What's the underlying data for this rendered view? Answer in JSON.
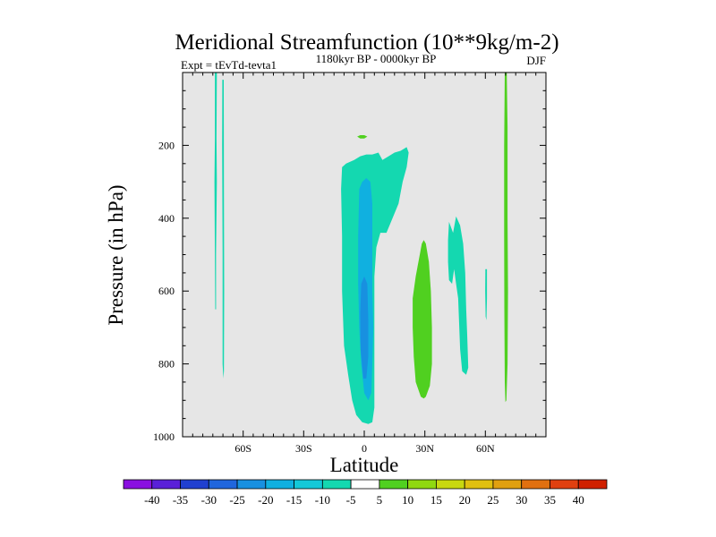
{
  "chart_data": {
    "type": "heatmap",
    "title": "Meridional Streamfunction (10**9kg/m-2)",
    "subtitle_left": "Expt = tEvTd-tevta1",
    "subtitle_center": "1180kyr BP - 0000kyr BP",
    "subtitle_right": "DJF",
    "xlabel": "Latitude",
    "ylabel": "Pressure (in hPa)",
    "xlim": [
      -90,
      90
    ],
    "ylim": [
      1000,
      0
    ],
    "x_ticks": [
      {
        "value": -60,
        "label": "60S"
      },
      {
        "value": -30,
        "label": "30S"
      },
      {
        "value": 0,
        "label": "0"
      },
      {
        "value": 30,
        "label": "30N"
      },
      {
        "value": 60,
        "label": "60N"
      }
    ],
    "y_ticks": [
      {
        "value": 200,
        "label": "200"
      },
      {
        "value": 400,
        "label": "400"
      },
      {
        "value": 600,
        "label": "600"
      },
      {
        "value": 800,
        "label": "800"
      },
      {
        "value": 1000,
        "label": "1000"
      }
    ],
    "plot_background": "#e6e6e6",
    "colorbar": {
      "labels": [
        "-40",
        "-35",
        "-30",
        "-25",
        "-20",
        "-15",
        "-10",
        "-5",
        "5",
        "10",
        "15",
        "20",
        "25",
        "30",
        "35",
        "40"
      ],
      "colors": [
        "#8a10e0",
        "#5a20d8",
        "#2040d0",
        "#2066dd",
        "#1890e0",
        "#10b0e0",
        "#14c8d8",
        "#14d8b0",
        "#ffffff",
        "#50d020",
        "#90d810",
        "#c8d810",
        "#e0c010",
        "#e0a010",
        "#e07010",
        "#e04010",
        "#d02000"
      ]
    },
    "regions": [
      {
        "name": "contour-sh-polar-band-a",
        "level": "-10",
        "color": "#14d8b0",
        "points": [
          [
            -74,
            0
          ],
          [
            -73,
            0
          ],
          [
            -73.2,
            180
          ],
          [
            -73,
            300
          ],
          [
            -73.4,
            500
          ],
          [
            -73.4,
            650
          ],
          [
            -73.8,
            650
          ],
          [
            -74,
            500
          ],
          [
            -74.2,
            300
          ],
          [
            -74,
            180
          ]
        ]
      },
      {
        "name": "contour-sh-polar-band-b",
        "level": "-10",
        "color": "#14d8b0",
        "points": [
          [
            -70.3,
            20
          ],
          [
            -69.6,
            20
          ],
          [
            -69.5,
            300
          ],
          [
            -69.4,
            600
          ],
          [
            -69.5,
            820
          ],
          [
            -69.8,
            840
          ],
          [
            -70.2,
            800
          ],
          [
            -70.2,
            500
          ],
          [
            -70.4,
            200
          ]
        ]
      },
      {
        "name": "contour-equatorial-cell-outer",
        "level": "-10",
        "color": "#14d8b0",
        "points": [
          [
            -11,
            260
          ],
          [
            -9,
            250
          ],
          [
            -5,
            240
          ],
          [
            -2,
            230
          ],
          [
            1,
            225
          ],
          [
            4,
            225
          ],
          [
            7,
            220
          ],
          [
            9,
            240
          ],
          [
            12,
            230
          ],
          [
            15,
            220
          ],
          [
            18,
            215
          ],
          [
            21,
            205
          ],
          [
            22,
            220
          ],
          [
            21,
            260
          ],
          [
            19,
            300
          ],
          [
            17,
            360
          ],
          [
            14,
            400
          ],
          [
            11,
            440
          ],
          [
            8,
            440
          ],
          [
            6,
            480
          ],
          [
            5,
            560
          ],
          [
            5,
            700
          ],
          [
            5,
            820
          ],
          [
            5,
            920
          ],
          [
            4,
            960
          ],
          [
            2,
            965
          ],
          [
            -1,
            960
          ],
          [
            -4,
            940
          ],
          [
            -6,
            900
          ],
          [
            -8,
            830
          ],
          [
            -10,
            750
          ],
          [
            -11,
            600
          ],
          [
            -11,
            450
          ],
          [
            -11.5,
            320
          ]
        ]
      },
      {
        "name": "contour-equatorial-cell-inner",
        "level": "-15",
        "color": "#10b0e0",
        "points": [
          [
            -2.5,
            320
          ],
          [
            -1,
            300
          ],
          [
            1,
            290
          ],
          [
            3,
            300
          ],
          [
            4,
            360
          ],
          [
            4,
            480
          ],
          [
            4,
            600
          ],
          [
            4.5,
            700
          ],
          [
            4,
            800
          ],
          [
            3.5,
            880
          ],
          [
            2,
            900
          ],
          [
            0,
            880
          ],
          [
            -1.5,
            800
          ],
          [
            -2.5,
            700
          ],
          [
            -3,
            580
          ],
          [
            -3,
            450
          ]
        ]
      },
      {
        "name": "contour-equatorial-cell-core",
        "level": "-20",
        "color": "#1890e0",
        "points": [
          [
            -1.5,
            580
          ],
          [
            0,
            560
          ],
          [
            1.5,
            580
          ],
          [
            2,
            680
          ],
          [
            2,
            780
          ],
          [
            1,
            840
          ],
          [
            -0.5,
            840
          ],
          [
            -1.8,
            760
          ],
          [
            -2,
            660
          ]
        ]
      },
      {
        "name": "contour-upper-tropo-cell",
        "level": "5",
        "color": "#50d020",
        "points": [
          [
            -3.5,
            176
          ],
          [
            -2,
            172
          ],
          [
            0,
            172
          ],
          [
            1.5,
            176
          ],
          [
            0,
            181
          ],
          [
            -2,
            181
          ]
        ]
      },
      {
        "name": "contour-nh-tropical-cell",
        "level": "5",
        "color": "#50d020",
        "points": [
          [
            28.5,
            470
          ],
          [
            29.5,
            460
          ],
          [
            30.5,
            470
          ],
          [
            32,
            520
          ],
          [
            33,
            600
          ],
          [
            33.5,
            700
          ],
          [
            33.5,
            800
          ],
          [
            32.5,
            860
          ],
          [
            30.5,
            890
          ],
          [
            29.5,
            895
          ],
          [
            28,
            890
          ],
          [
            25.5,
            850
          ],
          [
            24.5,
            780
          ],
          [
            24,
            700
          ],
          [
            24,
            620
          ],
          [
            25.5,
            560
          ]
        ]
      },
      {
        "name": "contour-nh-midlat-cell",
        "level": "-10",
        "color": "#14d8b0",
        "points": [
          [
            42,
            410
          ],
          [
            44,
            440
          ],
          [
            45.5,
            395
          ],
          [
            47.5,
            420
          ],
          [
            49,
            470
          ],
          [
            50,
            550
          ],
          [
            50.5,
            650
          ],
          [
            51,
            720
          ],
          [
            51.5,
            810
          ],
          [
            50.5,
            830
          ],
          [
            48.5,
            820
          ],
          [
            47.5,
            760
          ],
          [
            47,
            690
          ],
          [
            46.5,
            620
          ],
          [
            45.5,
            580
          ],
          [
            44.5,
            540
          ],
          [
            43.5,
            580
          ],
          [
            42,
            570
          ],
          [
            41.5,
            520
          ],
          [
            41.5,
            460
          ]
        ]
      },
      {
        "name": "contour-nh-thin-cell",
        "level": "-10",
        "color": "#14d8b0",
        "points": [
          [
            60,
            540
          ],
          [
            60.8,
            540
          ],
          [
            60.8,
            620
          ],
          [
            60.5,
            680
          ],
          [
            60.1,
            670
          ],
          [
            59.9,
            600
          ]
        ]
      },
      {
        "name": "contour-nh-polar-band",
        "level": "5",
        "color": "#50d020",
        "points": [
          [
            69.6,
            0
          ],
          [
            70.6,
            0
          ],
          [
            71,
            150
          ],
          [
            71,
            400
          ],
          [
            71.2,
            600
          ],
          [
            71,
            800
          ],
          [
            70.4,
            900
          ],
          [
            69.9,
            905
          ],
          [
            69.6,
            850
          ],
          [
            69.4,
            650
          ],
          [
            69.3,
            450
          ],
          [
            69.3,
            200
          ]
        ]
      }
    ]
  }
}
